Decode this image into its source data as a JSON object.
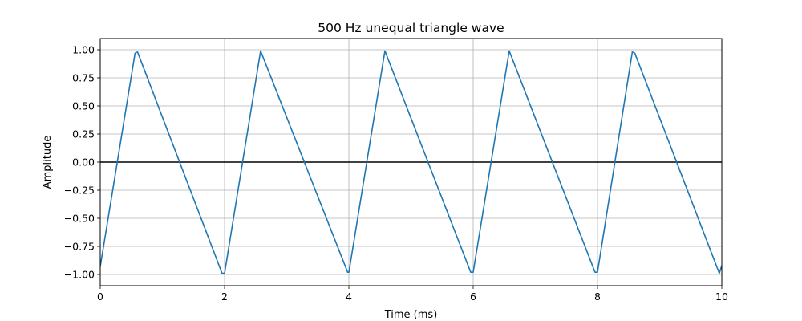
{
  "chart_data": {
    "type": "line",
    "title": "500 Hz unequal triangle wave",
    "xlabel": "Time (ms)",
    "ylabel": "Amplitude",
    "xlim": [
      0,
      10
    ],
    "ylim": [
      -1.1,
      1.1
    ],
    "x_ticks": [
      0,
      2,
      4,
      6,
      8,
      10
    ],
    "x_tick_labels": [
      "0",
      "2",
      "4",
      "6",
      "8",
      "10"
    ],
    "y_ticks": [
      -1.0,
      -0.75,
      -0.5,
      -0.25,
      0.0,
      0.25,
      0.5,
      0.75,
      1.0
    ],
    "y_tick_labels": [
      "−1.00",
      "−0.75",
      "−0.50",
      "−0.25",
      "0.00",
      "0.25",
      "0.50",
      "0.75",
      "1.00"
    ],
    "grid": true,
    "reference_line": {
      "y": 0,
      "color": "#000000"
    },
    "series": [
      {
        "color": "#1f77b4",
        "x": [
          0,
          0.56,
          0.6,
          1.96,
          2.0,
          2.58,
          3.98,
          4.0,
          4.58,
          5.96,
          6.0,
          6.58,
          7.96,
          8.0,
          8.56,
          8.6,
          9.96,
          10.0
        ],
        "y": [
          -0.93,
          0.97,
          0.98,
          -0.99,
          -0.99,
          0.99,
          -0.98,
          -0.98,
          0.99,
          -0.98,
          -0.98,
          0.99,
          -0.98,
          -0.98,
          0.98,
          0.97,
          -0.99,
          -0.92
        ]
      }
    ]
  }
}
